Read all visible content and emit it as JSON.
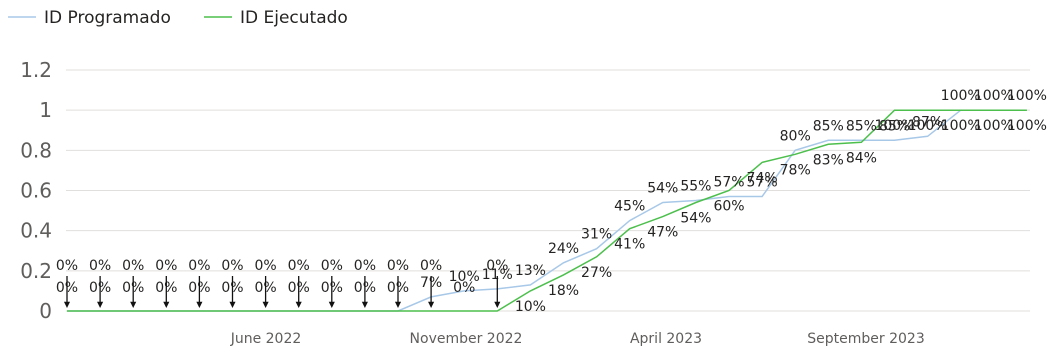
{
  "chart_data": {
    "type": "line",
    "x_tick_labels": [
      "June 2022",
      "November 2022",
      "April 2023",
      "September 2023"
    ],
    "y_ticks": [
      "0",
      "0.2",
      "0.4",
      "0.6",
      "0.8",
      "1",
      "1.2"
    ],
    "ylim": [
      0,
      1.2
    ],
    "grid": true,
    "legend_position": "top-left",
    "colors": {
      "programado": "#a8c8e8",
      "ejecutado": "#4cbf4c",
      "grid": "#e1dfdd",
      "arrow": "#111111"
    },
    "series": [
      {
        "name": "ID Programado",
        "values": [
          0,
          0,
          0,
          0,
          0,
          0,
          0,
          0,
          0,
          0,
          0,
          0.07,
          0.1,
          0.11,
          0.13,
          0.24,
          0.31,
          0.45,
          0.54,
          0.55,
          0.57,
          0.57,
          0.8,
          0.85,
          0.85,
          0.85,
          0.87,
          1.0,
          1.0,
          1.0
        ],
        "labels": [
          "0%",
          "0%",
          "0%",
          "0%",
          "0%",
          "0%",
          "0%",
          "0%",
          "0%",
          "0%",
          "0%",
          "7%",
          "10%",
          "11%",
          "13%",
          "24%",
          "31%",
          "45%",
          "54%",
          "55%",
          "57%",
          "57%",
          "80%",
          "85%",
          "85%",
          "85%",
          "87%",
          "100%",
          "100%",
          "100%"
        ]
      },
      {
        "name": "ID Ejecutado",
        "values": [
          0,
          0,
          0,
          0,
          0,
          0,
          0,
          0,
          0,
          0,
          0,
          0,
          0,
          0,
          0.1,
          0.18,
          0.27,
          0.41,
          0.47,
          0.54,
          0.6,
          0.74,
          0.78,
          0.83,
          0.84,
          1.0,
          1.0,
          1.0,
          1.0,
          1.0
        ],
        "labels": [
          "0%",
          "0%",
          "0%",
          "0%",
          "0%",
          "0%",
          "0%",
          "0%",
          "0%",
          "0%",
          "0%",
          "0%",
          "0%",
          "0%",
          "10%",
          "18%",
          "27%",
          "41%",
          "47%",
          "54%",
          "60%",
          "74%",
          "78%",
          "83%",
          "84%",
          "100%",
          "100%",
          "100%",
          "100%",
          "100%"
        ]
      }
    ]
  }
}
